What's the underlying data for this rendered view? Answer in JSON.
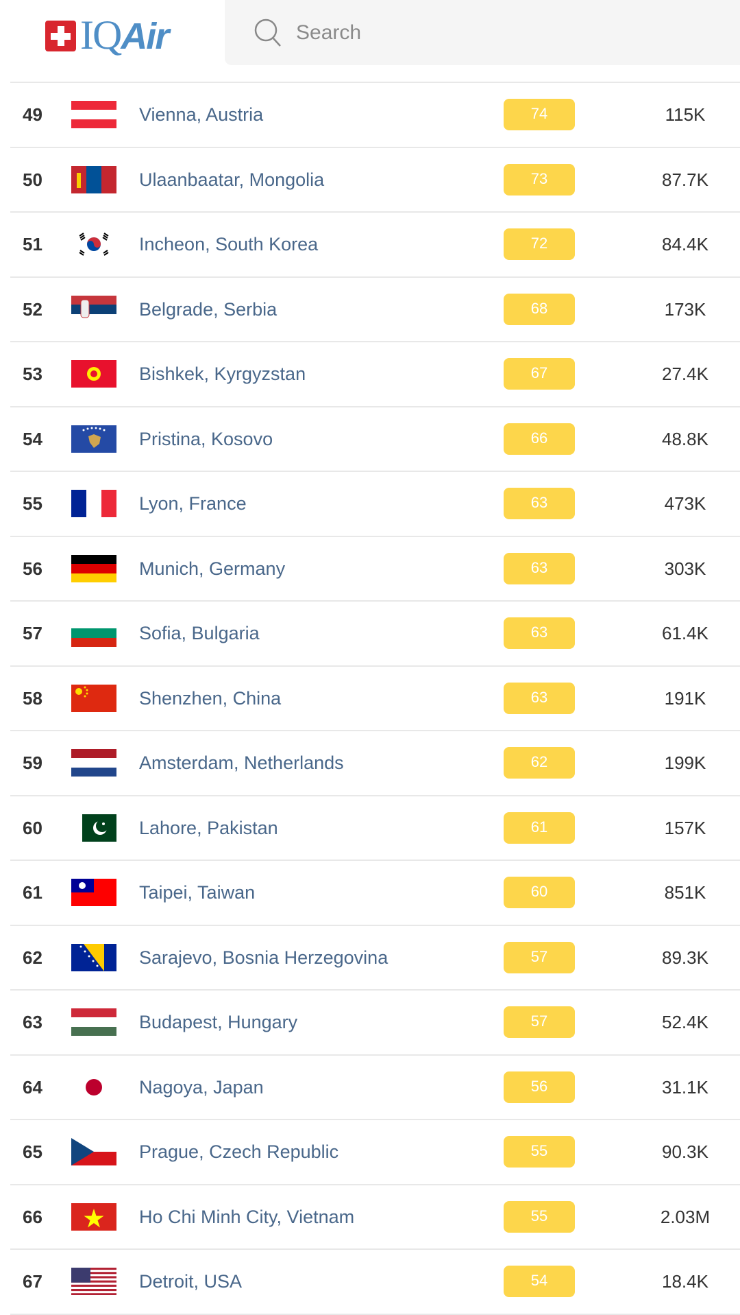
{
  "header": {
    "logo_text": "IQAir",
    "search_placeholder": "Search"
  },
  "colors": {
    "aqi_moderate": "#fdd64b",
    "city_link": "#49678a",
    "logo_blue": "#4f8ec6",
    "logo_red": "#d8262e"
  },
  "rows": [
    {
      "rank": "49",
      "flag": "austria",
      "city": "Vienna, Austria",
      "aqi": "74",
      "population": "115K"
    },
    {
      "rank": "50",
      "flag": "mongolia",
      "city": "Ulaanbaatar, Mongolia",
      "aqi": "73",
      "population": "87.7K"
    },
    {
      "rank": "51",
      "flag": "south-korea",
      "city": "Incheon, South Korea",
      "aqi": "72",
      "population": "84.4K"
    },
    {
      "rank": "52",
      "flag": "serbia",
      "city": "Belgrade, Serbia",
      "aqi": "68",
      "population": "173K"
    },
    {
      "rank": "53",
      "flag": "kyrgyzstan",
      "city": "Bishkek, Kyrgyzstan",
      "aqi": "67",
      "population": "27.4K"
    },
    {
      "rank": "54",
      "flag": "kosovo",
      "city": "Pristina, Kosovo",
      "aqi": "66",
      "population": "48.8K"
    },
    {
      "rank": "55",
      "flag": "france",
      "city": "Lyon, France",
      "aqi": "63",
      "population": "473K"
    },
    {
      "rank": "56",
      "flag": "germany",
      "city": "Munich, Germany",
      "aqi": "63",
      "population": "303K"
    },
    {
      "rank": "57",
      "flag": "bulgaria",
      "city": "Sofia, Bulgaria",
      "aqi": "63",
      "population": "61.4K"
    },
    {
      "rank": "58",
      "flag": "china",
      "city": "Shenzhen, China",
      "aqi": "63",
      "population": "191K"
    },
    {
      "rank": "59",
      "flag": "netherlands",
      "city": "Amsterdam, Netherlands",
      "aqi": "62",
      "population": "199K"
    },
    {
      "rank": "60",
      "flag": "pakistan",
      "city": "Lahore, Pakistan",
      "aqi": "61",
      "population": "157K"
    },
    {
      "rank": "61",
      "flag": "taiwan",
      "city": "Taipei, Taiwan",
      "aqi": "60",
      "population": "851K"
    },
    {
      "rank": "62",
      "flag": "bosnia-herzegovina",
      "city": "Sarajevo, Bosnia Herzegovina",
      "aqi": "57",
      "population": "89.3K"
    },
    {
      "rank": "63",
      "flag": "hungary",
      "city": "Budapest, Hungary",
      "aqi": "57",
      "population": "52.4K"
    },
    {
      "rank": "64",
      "flag": "japan",
      "city": "Nagoya, Japan",
      "aqi": "56",
      "population": "31.1K"
    },
    {
      "rank": "65",
      "flag": "czech-republic",
      "city": "Prague, Czech Republic",
      "aqi": "55",
      "population": "90.3K"
    },
    {
      "rank": "66",
      "flag": "vietnam",
      "city": "Ho Chi Minh City, Vietnam",
      "aqi": "55",
      "population": "2.03M"
    },
    {
      "rank": "67",
      "flag": "usa",
      "city": "Detroit, USA",
      "aqi": "54",
      "population": "18.4K"
    }
  ]
}
